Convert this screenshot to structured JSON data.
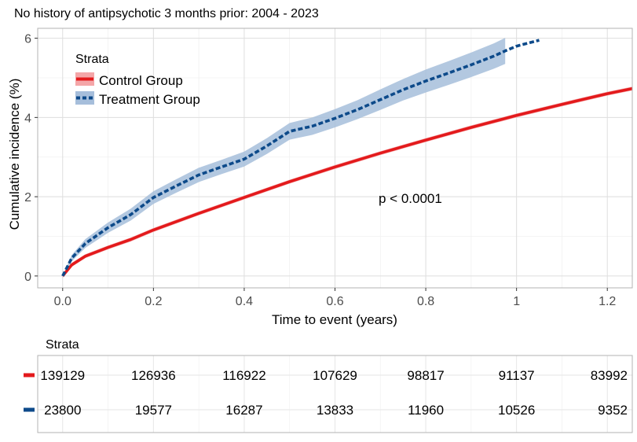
{
  "chart_data": {
    "type": "line",
    "title": "No history of antipsychotic 3 months prior: 2004 - 2023",
    "xlabel": "Time to event (years)",
    "ylabel": "Cumulative incidence (%)",
    "xlim": [
      -0.055,
      1.255
    ],
    "ylim": [
      -0.3,
      6.25
    ],
    "x_ticks": [
      0,
      0.2,
      0.4,
      0.6,
      0.8,
      1,
      1.2
    ],
    "x_tick_labels": [
      "0.0",
      "0.2",
      "0.4",
      "0.6",
      "0.8",
      "1",
      "1.2"
    ],
    "y_ticks": [
      0,
      2,
      4,
      6
    ],
    "y_tick_labels": [
      "0",
      "2",
      "4",
      "6"
    ],
    "grid": true,
    "legend": {
      "title": "Strata",
      "position": "top-left",
      "entries": [
        "Control Group",
        "Treatment Group"
      ]
    },
    "annotation": "p < 0.0001",
    "series": [
      {
        "name": "Control Group",
        "color": "#e31a1c",
        "band_color": "#f4a6a8",
        "line_style": "solid",
        "x": [
          0,
          0.02,
          0.05,
          0.1,
          0.15,
          0.2,
          0.3,
          0.4,
          0.5,
          0.6,
          0.7,
          0.8,
          0.9,
          1.0,
          1.1,
          1.2,
          1.255
        ],
        "y": [
          0,
          0.28,
          0.5,
          0.72,
          0.92,
          1.16,
          1.58,
          1.98,
          2.38,
          2.75,
          3.1,
          3.43,
          3.75,
          4.05,
          4.33,
          4.6,
          4.73
        ],
        "ci_halfwidth": 0.05
      },
      {
        "name": "Treatment Group",
        "color": "#0d4a8a",
        "band_color": "#a6bedb",
        "line_style": "dashed",
        "x": [
          0,
          0.02,
          0.05,
          0.1,
          0.15,
          0.2,
          0.25,
          0.3,
          0.35,
          0.4,
          0.45,
          0.5,
          0.55,
          0.6,
          0.65,
          0.7,
          0.75,
          0.8,
          0.85,
          0.9,
          0.95,
          0.975,
          1.0,
          1.05
        ],
        "y": [
          0,
          0.45,
          0.82,
          1.22,
          1.55,
          1.98,
          2.27,
          2.55,
          2.75,
          2.95,
          3.28,
          3.65,
          3.78,
          3.98,
          4.2,
          4.45,
          4.7,
          4.92,
          5.12,
          5.33,
          5.55,
          5.68,
          5.8,
          5.95
        ],
        "ci_halfwidth": [
          0,
          0.08,
          0.11,
          0.13,
          0.15,
          0.16,
          0.17,
          0.18,
          0.18,
          0.19,
          0.2,
          0.21,
          0.22,
          0.23,
          0.24,
          0.26,
          0.27,
          0.29,
          0.3,
          0.31,
          0.32,
          0.33,
          0,
          0
        ]
      }
    ],
    "risk_table": {
      "title": "Strata",
      "x": [
        0,
        0.2,
        0.4,
        0.6,
        0.8,
        1,
        1.2
      ],
      "rows": [
        {
          "name": "Control Group",
          "color": "#e31a1c",
          "values": [
            "139129",
            "126936",
            "116922",
            "107629",
            "98817",
            "91137",
            "83992"
          ]
        },
        {
          "name": "Treatment Group",
          "color": "#0d4a8a",
          "values": [
            "23800",
            "19577",
            "16287",
            "13833",
            "11960",
            "10526",
            "9352"
          ]
        }
      ]
    }
  }
}
